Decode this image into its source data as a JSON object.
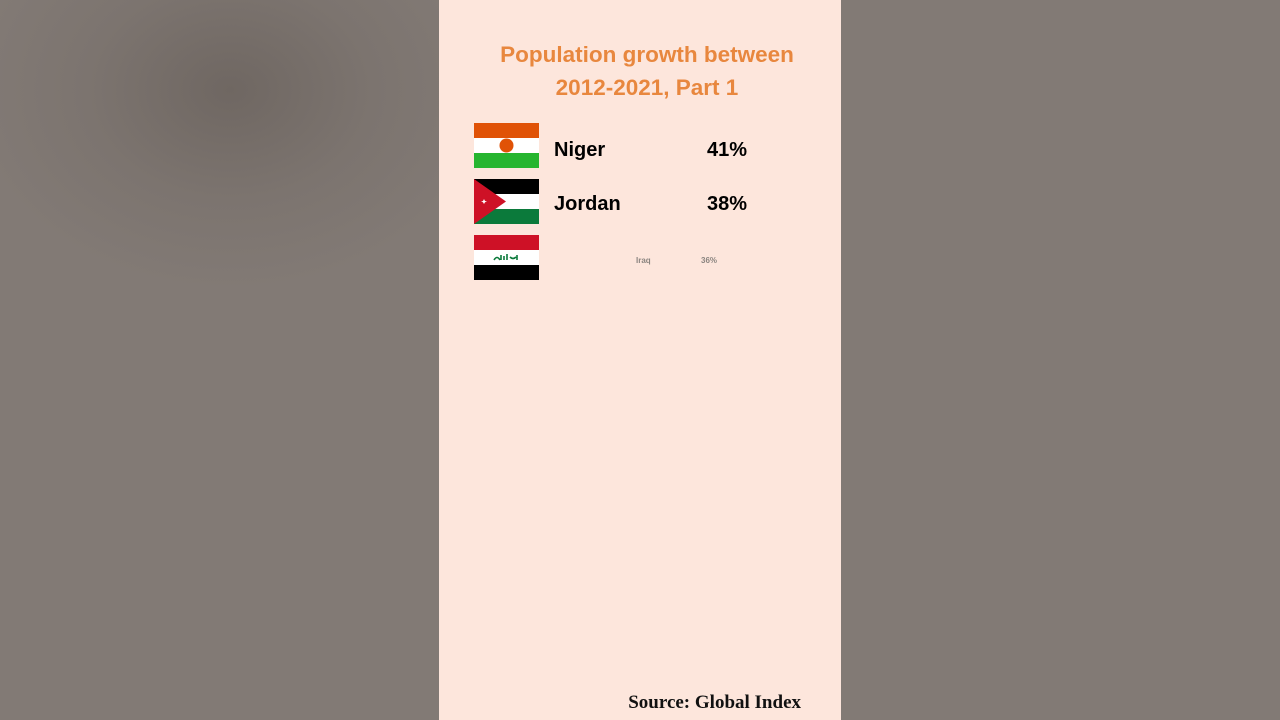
{
  "title": {
    "line1": "Population growth between",
    "line2": "2012-2021, Part 1"
  },
  "rows": [
    {
      "country": "Niger",
      "value": "41%",
      "flag_icon": "niger-flag"
    },
    {
      "country": "Jordan",
      "value": "38%",
      "flag_icon": "jordan-flag"
    },
    {
      "country": "Iraq",
      "value": "36%",
      "flag_icon": "iraq-flag"
    }
  ],
  "source": "Source: Global Index",
  "colors": {
    "title": "#e8873e",
    "panel_background": "#fde6dc",
    "side_background": "#817873"
  }
}
